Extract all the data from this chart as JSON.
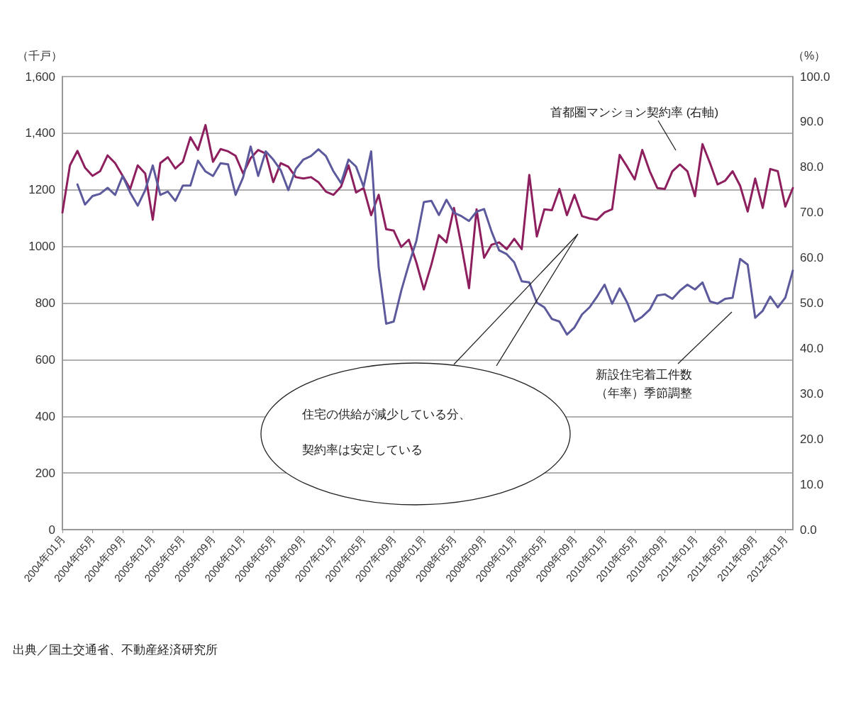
{
  "chart_data": {
    "type": "line",
    "ylabel": "（千戸）",
    "y2label": "（%）",
    "categories": [
      "2004年01月",
      null,
      null,
      null,
      "2004年05月",
      null,
      null,
      null,
      "2004年09月",
      null,
      null,
      null,
      "2005年01月",
      null,
      null,
      null,
      "2005年05月",
      null,
      null,
      null,
      "2005年09月",
      null,
      null,
      null,
      "2006年01月",
      null,
      null,
      null,
      "2006年05月",
      null,
      null,
      null,
      "2006年09月",
      null,
      null,
      null,
      "2007年01月",
      null,
      null,
      null,
      "2007年05月",
      null,
      null,
      null,
      "2007年09月",
      null,
      null,
      null,
      "2008年01月",
      null,
      null,
      null,
      "2008年05月",
      null,
      null,
      null,
      "2008年09月",
      null,
      null,
      null,
      "2009年01月",
      null,
      null,
      null,
      "2009年05月",
      null,
      null,
      null,
      "2009年09月",
      null,
      null,
      null,
      "2010年01月",
      null,
      null,
      null,
      "2010年05月",
      null,
      null,
      null,
      "2010年09月",
      null,
      null,
      null,
      "2011年01月",
      null,
      null,
      null,
      "2011年05月",
      null,
      null,
      null,
      "2011年09月",
      null,
      null,
      null,
      "2012年01月",
      null
    ],
    "series": [
      {
        "name": "首都圏マンション契約率 (右軸)",
        "color": "#8e1f5e",
        "axis": "y2",
        "values": [
          70.0,
          80.4,
          83.6,
          79.9,
          78.1,
          79.1,
          82.6,
          80.9,
          78.1,
          75.2,
          80.4,
          78.6,
          68.4,
          80.9,
          82.2,
          79.7,
          81.2,
          86.6,
          83.8,
          89.3,
          81.2,
          84.0,
          83.5,
          82.5,
          78.6,
          82.0,
          83.8,
          83.0,
          76.7,
          80.9,
          80.1,
          77.8,
          77.5,
          77.8,
          76.7,
          74.6,
          73.9,
          75.7,
          80.4,
          74.4,
          75.4,
          69.4,
          73.9,
          66.3,
          66.0,
          62.4,
          64.0,
          59.0,
          53.0,
          58.5,
          65.0,
          63.4,
          71.0,
          62.6,
          53.3,
          70.7,
          60.0,
          62.9,
          63.4,
          61.9,
          64.2,
          61.9,
          78.3,
          64.7,
          70.7,
          70.5,
          75.2,
          69.4,
          73.9,
          69.2,
          68.7,
          68.4,
          70.0,
          70.7,
          82.7,
          80.1,
          77.3,
          83.8,
          79.1,
          75.4,
          75.2,
          79.1,
          80.6,
          79.1,
          73.6,
          85.1,
          80.9,
          76.2,
          77.0,
          79.1,
          75.9,
          70.2,
          77.5,
          71.0,
          79.6,
          79.1,
          71.3,
          75.4
        ]
      },
      {
        "name": "新設住宅着工件数（年率）季節調整",
        "color": "#5c5a9c",
        "values": [
          null,
          null,
          1219,
          1148,
          1178,
          1186,
          1207,
          1182,
          1249,
          1190,
          1144,
          1199,
          1286,
          1182,
          1194,
          1161,
          1215,
          1215,
          1303,
          1265,
          1249,
          1294,
          1290,
          1182,
          1244,
          1353,
          1249,
          1336,
          1307,
          1269,
          1199,
          1274,
          1307,
          1319,
          1343,
          1319,
          1265,
          1224,
          1307,
          1282,
          1211,
          1336,
          927,
          727,
          735,
          844,
          936,
          1019,
          1157,
          1161,
          1111,
          1165,
          1119,
          1107,
          1090,
          1123,
          1132,
          1052,
          986,
          973,
          944,
          877,
          873,
          802,
          785,
          744,
          735,
          689,
          714,
          760,
          785,
          823,
          865,
          798,
          852,
          802,
          735,
          752,
          777,
          827,
          831,
          815,
          844,
          865,
          848,
          873,
          806,
          798,
          815,
          819,
          956,
          936,
          748,
          773,
          823,
          785,
          819,
          915
        ]
      }
    ],
    "ylim": [
      0,
      1600
    ],
    "yticks": [
      0,
      200,
      400,
      600,
      800,
      1000,
      1200,
      {
        "value": 1400,
        "label": "1,400"
      },
      {
        "value": 1600,
        "label": "1,600"
      }
    ],
    "y2lim": [
      0,
      100
    ],
    "y2ticks": [
      {
        "value": 0,
        "label": "0.0"
      },
      {
        "value": 10,
        "label": "10.0"
      },
      {
        "value": 20,
        "label": "20.0"
      },
      {
        "value": 30,
        "label": "30.0"
      },
      {
        "value": 40,
        "label": "40.0"
      },
      {
        "value": 50,
        "label": "50.0"
      },
      {
        "value": 60,
        "label": "60.0"
      },
      {
        "value": 70,
        "label": "70.0"
      },
      {
        "value": 80,
        "label": "80.0"
      },
      {
        "value": 90,
        "label": "90.0"
      },
      {
        "value": 100,
        "label": "100.0"
      }
    ],
    "grid": "y",
    "line_style": "solid",
    "annotations": [
      "住宅の供給が減少している分、契約率は安定している",
      "出典／国土交通省、不動産経済研究所"
    ]
  }
}
